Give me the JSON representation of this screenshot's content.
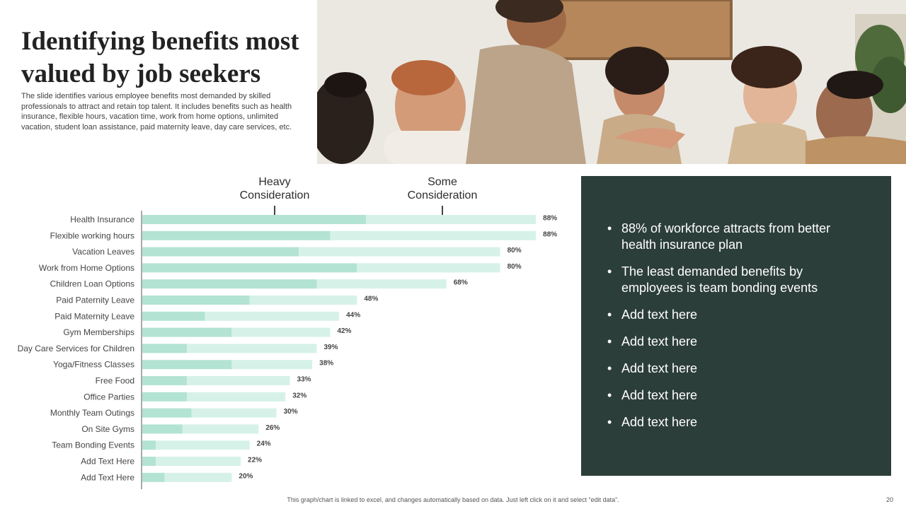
{
  "slide": {
    "title": "Identifying benefits most valued by job seekers",
    "description": "The slide identifies various employee benefits most demanded by skilled professionals to attract and retain top talent. It includes benefits such as health insurance, flexible hours, vacation time, work from home options, unlimited vacation, student loan assistance, paid maternity leave, day care services, etc.",
    "footer": "This graph/chart is linked to excel, and changes automatically based on data. Just left click on it and select “edit data”.",
    "page_number": "20"
  },
  "markers": {
    "heavy_line1": "Heavy",
    "heavy_line2": "Consideration",
    "some_line1": "Some",
    "some_line2": "Consideration"
  },
  "panel": {
    "bullet_symbol": "•",
    "bullets": [
      "88% of workforce attracts from better health insurance plan",
      "The least demanded benefits by employees is team bonding events",
      "Add text here",
      "Add text here",
      "Add text here",
      "Add text here",
      "Add text here"
    ]
  },
  "chart_data": {
    "type": "bar",
    "orientation": "horizontal",
    "stacked": true,
    "categories": [
      "Health Insurance",
      "Flexible working hours",
      "Vacation Leaves",
      "Work from Home Options",
      "Children Loan Options",
      "Paid Paternity Leave",
      "Paid Maternity Leave",
      "Gym Memberships",
      "Day Care Services for Children",
      "Yoga/Fitness Classes",
      "Free Food",
      "Office Parties",
      "Monthly Team Outings",
      "On Site Gyms",
      "Team Bonding Events",
      "Add Text Here",
      "Add Text Here"
    ],
    "series": [
      {
        "values": [
          50,
          42,
          35,
          48,
          39,
          24,
          14,
          20,
          10,
          20,
          10,
          10,
          11,
          9,
          3,
          3,
          5
        ]
      },
      {
        "values": [
          38,
          46,
          45,
          32,
          29,
          24,
          30,
          22,
          29,
          18,
          23,
          22,
          19,
          17,
          21,
          19,
          15
        ]
      }
    ],
    "totals": [
      88,
      88,
      80,
      80,
      68,
      48,
      44,
      42,
      39,
      38,
      33,
      32,
      30,
      26,
      24,
      22,
      20
    ],
    "value_labels": [
      "88%",
      "88%",
      "80%",
      "80%",
      "68%",
      "48%",
      "44%",
      "42%",
      "39%",
      "38%",
      "33%",
      "32%",
      "30%",
      "26%",
      "24%",
      "22%",
      "20%"
    ],
    "xlim": [
      0,
      100
    ],
    "colors": {
      "heavy": "#b3e3d3",
      "some": "#d6f2e8",
      "axis": "#555555"
    }
  },
  "colors": {
    "panel_bg": "#2c3e3a",
    "title": "#222222"
  }
}
